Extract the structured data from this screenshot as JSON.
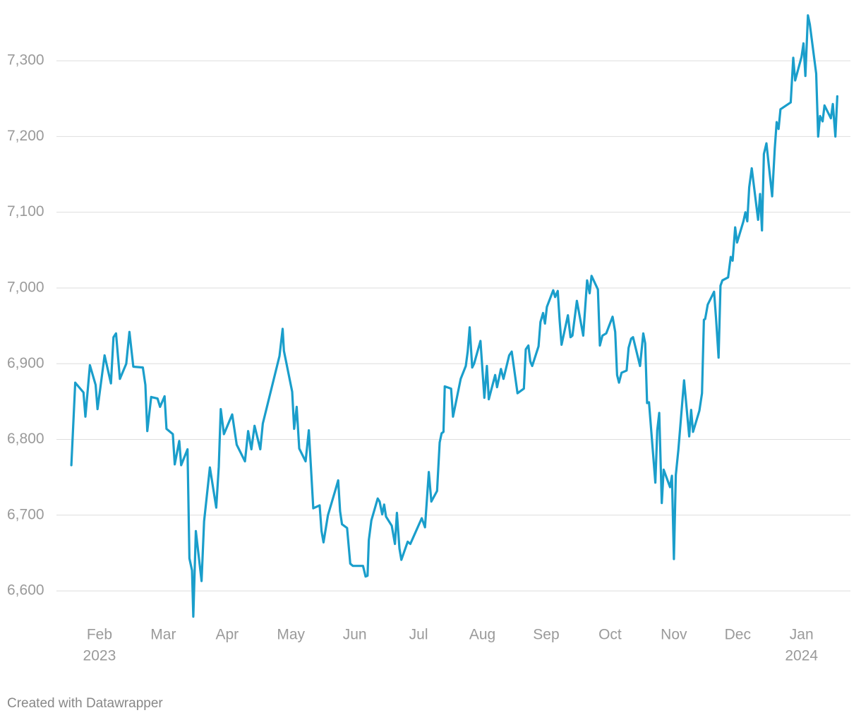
{
  "chart_data": {
    "type": "line",
    "footer": "Created with Datawrapper",
    "xlim": [
      0.5,
      12.6
    ],
    "ylim": [
      6560,
      7370
    ],
    "grid": true,
    "xticks": [
      {
        "value": 1,
        "label": "Feb"
      },
      {
        "value": 2,
        "label": "Mar"
      },
      {
        "value": 3,
        "label": "Apr"
      },
      {
        "value": 4,
        "label": "May"
      },
      {
        "value": 5,
        "label": "Jun"
      },
      {
        "value": 6,
        "label": "Jul"
      },
      {
        "value": 7,
        "label": "Aug"
      },
      {
        "value": 8,
        "label": "Sep"
      },
      {
        "value": 9,
        "label": "Oct"
      },
      {
        "value": 10,
        "label": "Nov"
      },
      {
        "value": 11,
        "label": "Dec"
      },
      {
        "value": 12,
        "label": "Jan"
      }
    ],
    "year_labels": [
      {
        "value": 1,
        "label": "2023"
      },
      {
        "value": 12,
        "label": "2024"
      }
    ],
    "yticks": [
      {
        "value": 6600,
        "label": "6,600"
      },
      {
        "value": 6700,
        "label": "6,700"
      },
      {
        "value": 6800,
        "label": "6,800"
      },
      {
        "value": 6900,
        "label": "6,900"
      },
      {
        "value": 7000,
        "label": "7,000"
      },
      {
        "value": 7100,
        "label": "7,100"
      },
      {
        "value": 7200,
        "label": "7,200"
      },
      {
        "value": 7300,
        "label": "7,300"
      }
    ],
    "series": [
      {
        "color": "#1a9ecb",
        "x": [
          0.56,
          0.62,
          0.75,
          0.78,
          0.85,
          0.94,
          0.97,
          1.08,
          1.18,
          1.22,
          1.26,
          1.32,
          1.42,
          1.47,
          1.53,
          1.68,
          1.72,
          1.75,
          1.81,
          1.91,
          1.95,
          2.02,
          2.05,
          2.15,
          2.18,
          2.25,
          2.28,
          2.38,
          2.41,
          2.45,
          2.47,
          2.51,
          2.6,
          2.64,
          2.73,
          2.83,
          2.87,
          2.9,
          2.95,
          3.08,
          3.15,
          3.28,
          3.33,
          3.38,
          3.43,
          3.52,
          3.56,
          3.82,
          3.87,
          3.89,
          4.02,
          4.05,
          4.09,
          4.13,
          4.23,
          4.28,
          4.35,
          4.45,
          4.48,
          4.51,
          4.58,
          4.7,
          4.74,
          4.77,
          4.8,
          4.88,
          4.93,
          4.97,
          5.13,
          5.17,
          5.2,
          5.22,
          5.26,
          5.36,
          5.39,
          5.43,
          5.46,
          5.49,
          5.58,
          5.63,
          5.66,
          5.7,
          5.73,
          5.83,
          5.87,
          6.05,
          6.1,
          6.16,
          6.2,
          6.29,
          6.33,
          6.36,
          6.39,
          6.41,
          6.51,
          6.54,
          6.66,
          6.74,
          6.77,
          6.8,
          6.84,
          6.87,
          6.97,
          7.03,
          7.07,
          7.1,
          7.2,
          7.23,
          7.29,
          7.33,
          7.42,
          7.46,
          7.55,
          7.65,
          7.68,
          7.72,
          7.75,
          7.78,
          7.88,
          7.91,
          7.95,
          7.98,
          8.01,
          8.11,
          8.14,
          8.18,
          8.21,
          8.24,
          8.34,
          8.38,
          8.41,
          8.48,
          8.58,
          8.64,
          8.68,
          8.71,
          8.81,
          8.84,
          8.88,
          8.94,
          9.04,
          9.08,
          9.11,
          9.14,
          9.18,
          9.26,
          9.29,
          9.33,
          9.36,
          9.47,
          9.52,
          9.55,
          9.58,
          9.61,
          9.71,
          9.74,
          9.77,
          9.81,
          9.84,
          9.94,
          9.97,
          10.0,
          10.03,
          10.07,
          10.16,
          10.24,
          10.27,
          10.3,
          10.4,
          10.44,
          10.47,
          10.49,
          10.53,
          10.63,
          10.66,
          10.7,
          10.73,
          10.76,
          10.85,
          10.89,
          10.92,
          10.96,
          10.99,
          11.09,
          11.12,
          11.15,
          11.18,
          11.22,
          11.32,
          11.35,
          11.38,
          11.41,
          11.45,
          11.54,
          11.58,
          11.61,
          11.64,
          11.67,
          11.83,
          11.87,
          11.9,
          12.0,
          12.03,
          12.06,
          12.1,
          12.13,
          12.23,
          12.26,
          12.29,
          12.33,
          12.36,
          12.46,
          12.49,
          12.53,
          12.56
        ],
        "values": [
          6766,
          6875,
          6862,
          6830,
          6898,
          6872,
          6840,
          6911,
          6874,
          6935,
          6940,
          6880,
          6900,
          6942,
          6896,
          6895,
          6872,
          6811,
          6856,
          6854,
          6843,
          6857,
          6814,
          6807,
          6767,
          6798,
          6766,
          6787,
          6643,
          6627,
          6566,
          6679,
          6613,
          6692,
          6763,
          6710,
          6764,
          6840,
          6807,
          6833,
          6793,
          6771,
          6811,
          6787,
          6818,
          6787,
          6821,
          6910,
          6946,
          6917,
          6863,
          6814,
          6843,
          6788,
          6771,
          6812,
          6709,
          6713,
          6679,
          6664,
          6700,
          6734,
          6746,
          6705,
          6688,
          6683,
          6636,
          6633,
          6633,
          6619,
          6620,
          6667,
          6693,
          6722,
          6718,
          6701,
          6714,
          6698,
          6686,
          6662,
          6703,
          6656,
          6641,
          6665,
          6662,
          6696,
          6684,
          6757,
          6718,
          6732,
          6796,
          6808,
          6810,
          6870,
          6867,
          6830,
          6880,
          6897,
          6916,
          6948,
          6895,
          6900,
          6930,
          6855,
          6897,
          6853,
          6885,
          6869,
          6893,
          6880,
          6911,
          6916,
          6861,
          6867,
          6919,
          6924,
          6903,
          6897,
          6923,
          6955,
          6967,
          6953,
          6975,
          6997,
          6988,
          6996,
          6957,
          6925,
          6964,
          6935,
          6937,
          6983,
          6937,
          7010,
          6993,
          7016,
          6998,
          6924,
          6937,
          6940,
          6962,
          6942,
          6885,
          6875,
          6888,
          6891,
          6921,
          6933,
          6935,
          6897,
          6940,
          6927,
          6848,
          6849,
          6743,
          6812,
          6835,
          6716,
          6760,
          6737,
          6752,
          6642,
          6753,
          6786,
          6878,
          6804,
          6839,
          6810,
          6838,
          6861,
          6958,
          6959,
          6978,
          6995,
          6960,
          6908,
          7003,
          7010,
          7014,
          7041,
          7036,
          7080,
          7060,
          7088,
          7100,
          7088,
          7133,
          7158,
          7090,
          7124,
          7076,
          7177,
          7191,
          7121,
          7184,
          7219,
          7210,
          7236,
          7245,
          7304,
          7274,
          7305,
          7323,
          7280,
          7360,
          7348,
          7283,
          7200,
          7227,
          7220,
          7241,
          7224,
          7243,
          7200,
          7253
        ]
      }
    ]
  }
}
